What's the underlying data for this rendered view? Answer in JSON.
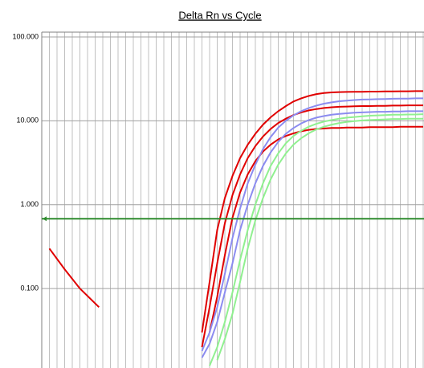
{
  "chart_data": {
    "type": "line",
    "title": "Delta Rn vs Cycle",
    "log_scale": true,
    "grid": true,
    "ylim": [
      0.0113,
      114
    ],
    "yticks": [
      {
        "value": 100,
        "label": "100.000"
      },
      {
        "value": 10,
        "label": "10.000"
      },
      {
        "value": 1,
        "label": "1.000"
      },
      {
        "value": 0.1,
        "label": "0.100"
      }
    ],
    "xlim": [
      0,
      50
    ],
    "threshold": {
      "value": 0.68,
      "color": "#2e8b2e"
    },
    "x": [
      21,
      22,
      23,
      24,
      25,
      26,
      27,
      28,
      29,
      30,
      31,
      32,
      33,
      34,
      35,
      36,
      37,
      38,
      39,
      40,
      41,
      42,
      43,
      44,
      45,
      46,
      47,
      48,
      49,
      50
    ],
    "series": [
      {
        "color": "#e00000",
        "x": [
          1,
          3,
          5,
          7.5
        ],
        "values": [
          0.3,
          0.17,
          0.1,
          0.06
        ]
      },
      {
        "color": "#e00000",
        "values": [
          0.03,
          0.12,
          0.5,
          1.2,
          2.2,
          3.6,
          5.2,
          7,
          9,
          11,
          13,
          15,
          17,
          18.5,
          19.8,
          20.8,
          21.4,
          21.8,
          22,
          22.1,
          22.2,
          22.2,
          22.3,
          22.3,
          22.4,
          22.4,
          22.5,
          22.5,
          22.6,
          22.6
        ]
      },
      {
        "color": "#e00000",
        "values": [
          0.02,
          0.06,
          0.2,
          0.6,
          1.3,
          2.3,
          3.6,
          5,
          6.5,
          8,
          9.4,
          10.6,
          11.7,
          12.6,
          13.3,
          13.8,
          14.2,
          14.5,
          14.7,
          14.8,
          14.9,
          15,
          15,
          15.1,
          15.1,
          15.2,
          15.2,
          15.3,
          15.3,
          15.3
        ]
      },
      {
        "color": "#e00000",
        "values": [
          null,
          0.03,
          0.08,
          0.25,
          0.7,
          1.4,
          2.3,
          3.3,
          4.3,
          5.2,
          6,
          6.6,
          7.1,
          7.5,
          7.8,
          8,
          8.1,
          8.2,
          8.2,
          8.3,
          8.3,
          8.3,
          8.4,
          8.4,
          8.4,
          8.4,
          8.5,
          8.5,
          8.5,
          8.5
        ]
      },
      {
        "color": "#8c8cf0",
        "values": [
          0.018,
          0.03,
          0.06,
          0.15,
          0.4,
          0.9,
          1.8,
          3,
          4.6,
          6.4,
          8.3,
          10,
          11.6,
          13,
          14.2,
          15.2,
          16,
          16.6,
          17.1,
          17.4,
          17.7,
          17.9,
          18,
          18.1,
          18.2,
          18.3,
          18.4,
          18.4,
          18.5,
          18.5
        ]
      },
      {
        "color": "#8c8cf0",
        "values": [
          0.015,
          0.022,
          0.04,
          0.09,
          0.2,
          0.5,
          1,
          1.8,
          2.9,
          4.2,
          5.6,
          7,
          8.2,
          9.3,
          10.2,
          10.9,
          11.4,
          11.8,
          12.1,
          12.3,
          12.5,
          12.6,
          12.7,
          12.8,
          12.8,
          12.9,
          12.9,
          13,
          13,
          13
        ]
      },
      {
        "color": "#90f090",
        "values": [
          null,
          0.012,
          0.02,
          0.04,
          0.09,
          0.22,
          0.5,
          1,
          1.8,
          2.9,
          4.1,
          5.4,
          6.6,
          7.6,
          8.5,
          9.2,
          9.8,
          10.2,
          10.6,
          10.9,
          11.1,
          11.3,
          11.5,
          11.6,
          11.7,
          11.8,
          11.8,
          11.9,
          11.9,
          12
        ]
      },
      {
        "color": "#90f090",
        "values": [
          null,
          null,
          0.014,
          0.025,
          0.05,
          0.12,
          0.3,
          0.65,
          1.2,
          2,
          3,
          4.1,
          5.2,
          6.2,
          7.1,
          7.9,
          8.5,
          9,
          9.4,
          9.7,
          9.9,
          10.1,
          10.2,
          10.3,
          10.4,
          10.5,
          10.5,
          10.6,
          10.6,
          10.6
        ]
      }
    ]
  }
}
